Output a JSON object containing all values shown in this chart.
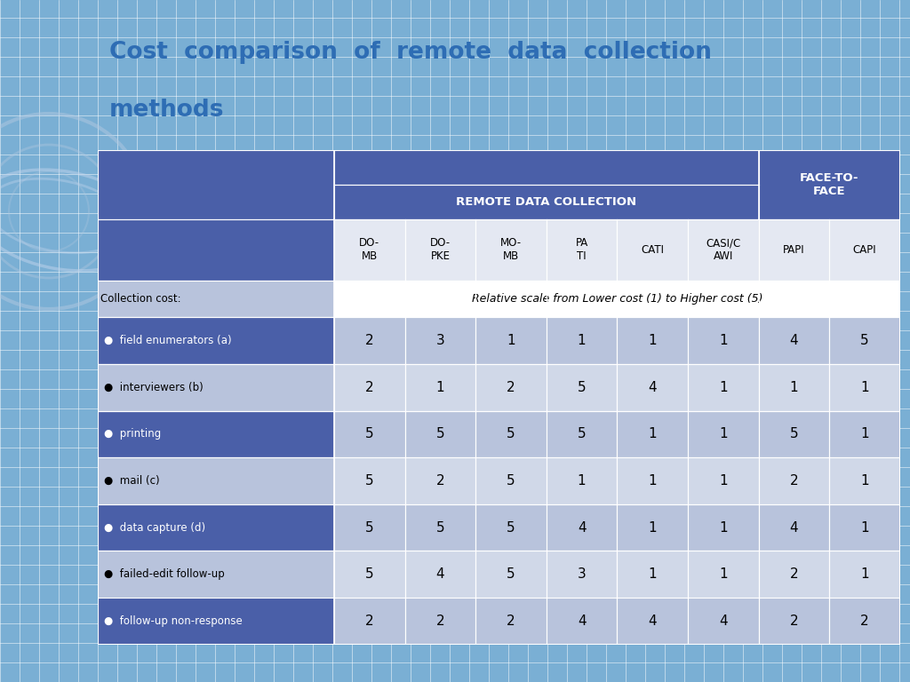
{
  "title_line1": "Cost  comparison  of  remote  data  collection",
  "title_line2": "methods",
  "title_color": "#2E6DB4",
  "bg_color": "#7AAFD4",
  "bg_grid_color": "#FFFFFF",
  "left_panel_color": "#7AAFD4",
  "table_dark_blue": "#4A5FA8",
  "table_medium_blue": "#8A96C8",
  "table_light_blue1": "#B8C3DC",
  "table_light_blue2": "#D0D8E8",
  "table_lighter_blue": "#E4E8F2",
  "table_white": "#FFFFFF",
  "text_white": "#FFFFFF",
  "text_black": "#000000",
  "col_subheaders": [
    "DO-\nMB",
    "DO-\nPKE",
    "MO-\nMB",
    "PA\nTI",
    "CATI",
    "CASI/C\nAWI",
    "PAPI",
    "CAPI"
  ],
  "row_labels": [
    "Collection cost:",
    "●  field enumerators (a)",
    "●  interviewers (b)",
    "●  printing",
    "●  mail (c)",
    "●  data capture (d)",
    "●  failed-edit follow-up",
    "●  follow-up non-response"
  ],
  "scale_note": "Relative scale from Lower cost (1) to Higher cost (5)",
  "data": [
    [
      2,
      3,
      1,
      1,
      1,
      1,
      4,
      5
    ],
    [
      2,
      1,
      2,
      5,
      4,
      1,
      1,
      1
    ],
    [
      5,
      5,
      5,
      5,
      1,
      1,
      5,
      1
    ],
    [
      5,
      2,
      5,
      1,
      1,
      1,
      2,
      1
    ],
    [
      5,
      5,
      5,
      4,
      1,
      1,
      4,
      1
    ],
    [
      5,
      4,
      5,
      3,
      1,
      1,
      2,
      1
    ],
    [
      2,
      2,
      2,
      4,
      4,
      4,
      2,
      2
    ]
  ]
}
